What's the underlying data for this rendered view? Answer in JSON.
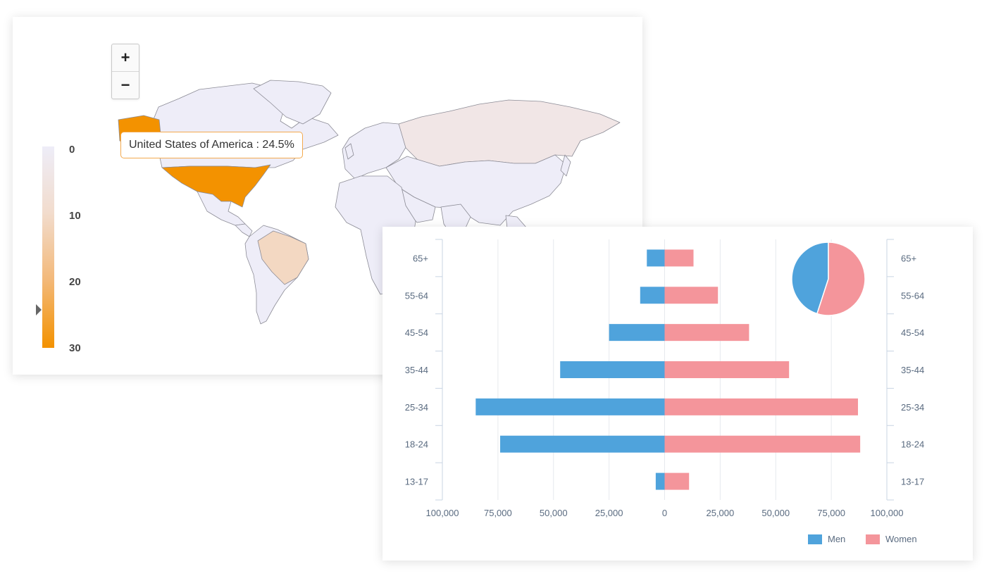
{
  "map": {
    "zoom_in_label": "+",
    "zoom_out_label": "−",
    "legend_ticks": [
      "0",
      "10",
      "20",
      "30"
    ],
    "legend_pointer_value": 24.5,
    "tooltip": "United States of America : 24.5%",
    "colors": {
      "low": "#eeedf8",
      "mid": "#f2dccd",
      "high": "#f39200",
      "border": "#8c8c96"
    }
  },
  "chart_data": {
    "type": "bar",
    "orientation": "horizontal",
    "categories": [
      "65+",
      "55-64",
      "45-54",
      "35-44",
      "25-34",
      "18-24",
      "13-17"
    ],
    "series": [
      {
        "name": "Men",
        "values": [
          8000,
          11000,
          25000,
          47000,
          85000,
          74000,
          4000
        ],
        "color": "#4fa3dc"
      },
      {
        "name": "Women",
        "values": [
          13000,
          24000,
          38000,
          56000,
          87000,
          88000,
          11000
        ],
        "color": "#f4959b"
      }
    ],
    "x_ticks": [
      "100,000",
      "75,000",
      "50,000",
      "25,000",
      "0",
      "25,000",
      "50,000",
      "75,000",
      "100,000"
    ],
    "xlim": [
      -100000,
      100000
    ],
    "grid": true,
    "legend": "bottom-right",
    "inset_pie": {
      "values": [
        45,
        55
      ],
      "labels": [
        "Men",
        "Women"
      ]
    }
  }
}
